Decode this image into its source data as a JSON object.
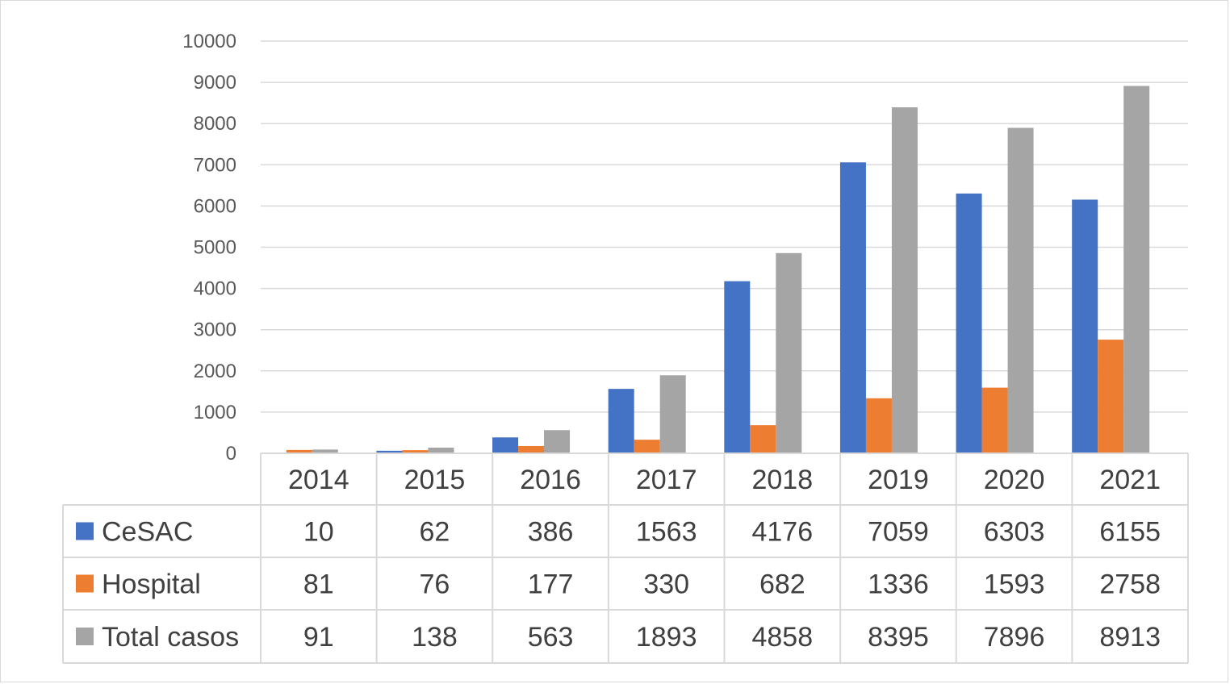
{
  "chart_data": {
    "type": "bar",
    "title": "",
    "xlabel": "",
    "ylabel": "",
    "categories": [
      "2014",
      "2015",
      "2016",
      "2017",
      "2018",
      "2019",
      "2020",
      "2021"
    ],
    "series": [
      {
        "name": "CeSAC",
        "color": "#4472c4",
        "values": [
          10,
          62,
          386,
          1563,
          4176,
          7059,
          6303,
          6155
        ]
      },
      {
        "name": "Hospital",
        "color": "#ed7d31",
        "values": [
          81,
          76,
          177,
          330,
          682,
          1336,
          1593,
          2758
        ]
      },
      {
        "name": "Total casos",
        "color": "#a5a5a5",
        "values": [
          91,
          138,
          563,
          1893,
          4858,
          8395,
          7896,
          8913
        ]
      }
    ],
    "ylim": [
      0,
      10000
    ],
    "yticks": [
      0,
      1000,
      2000,
      3000,
      4000,
      5000,
      6000,
      7000,
      8000,
      9000,
      10000
    ],
    "grid": true,
    "legend": "data-table",
    "data_table": true
  }
}
